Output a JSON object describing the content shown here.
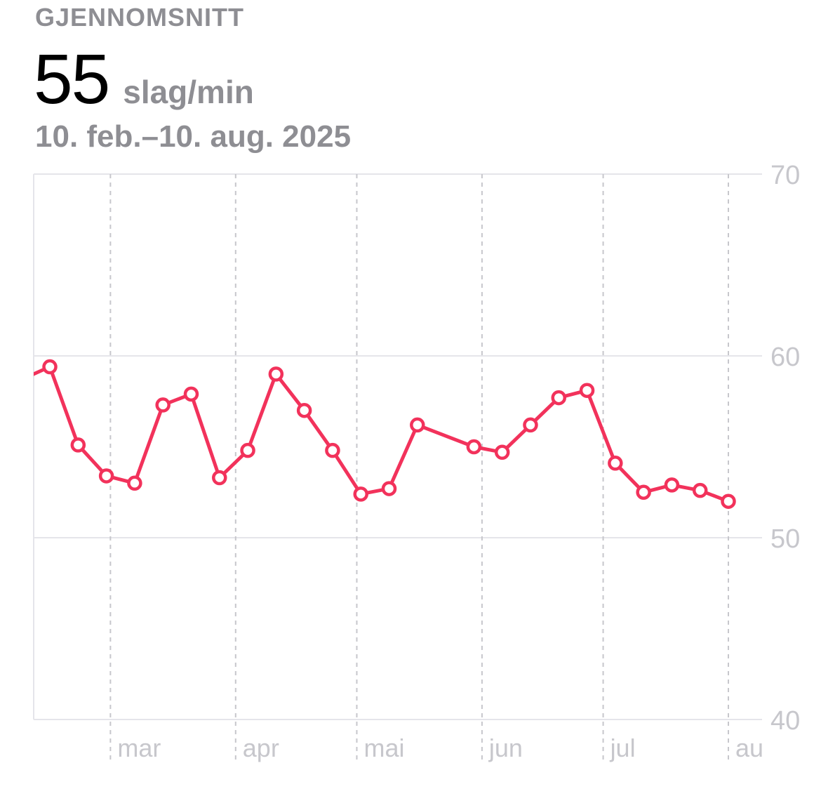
{
  "header": {
    "label": "GJENNOMSNITT",
    "value": "55",
    "unit": "slag/min",
    "date_range": "10. feb.–10. aug. 2025"
  },
  "colors": {
    "series": "#f2325b",
    "gridline": "#e5e5ea",
    "axis_text": "#c7c7cc",
    "header_gray": "#8e8e93"
  },
  "chart_data": {
    "type": "line",
    "ylim": [
      40,
      70
    ],
    "yticks": [
      "70",
      "60",
      "50",
      "40"
    ],
    "grid": true,
    "xticks": [
      {
        "label": "mar",
        "date": "2025-03-01"
      },
      {
        "label": "apr",
        "date": "2025-04-01"
      },
      {
        "label": "mai",
        "date": "2025-05-01"
      },
      {
        "label": "jun",
        "date": "2025-06-01"
      },
      {
        "label": "jul",
        "date": "2025-07-01"
      },
      {
        "label": "aug",
        "date": "2025-08-01"
      }
    ],
    "xrange": [
      "2025-02-10",
      "2025-08-10"
    ],
    "series": [
      {
        "values": [
          {
            "x": "2025-02-10",
            "y": 59.0
          },
          {
            "x": "2025-02-14",
            "y": 59.4
          },
          {
            "x": "2025-02-21",
            "y": 55.1
          },
          {
            "x": "2025-02-28",
            "y": 53.4
          },
          {
            "x": "2025-03-07",
            "y": 53.0
          },
          {
            "x": "2025-03-14",
            "y": 57.3
          },
          {
            "x": "2025-03-21",
            "y": 57.9
          },
          {
            "x": "2025-03-28",
            "y": 53.3
          },
          {
            "x": "2025-04-04",
            "y": 54.8
          },
          {
            "x": "2025-04-11",
            "y": 59.0
          },
          {
            "x": "2025-04-18",
            "y": 57.0
          },
          {
            "x": "2025-04-25",
            "y": 54.8
          },
          {
            "x": "2025-05-02",
            "y": 52.4
          },
          {
            "x": "2025-05-09",
            "y": 52.7
          },
          {
            "x": "2025-05-16",
            "y": 56.2
          },
          {
            "x": "2025-05-30",
            "y": 55.0
          },
          {
            "x": "2025-06-06",
            "y": 54.7
          },
          {
            "x": "2025-06-13",
            "y": 56.2
          },
          {
            "x": "2025-06-20",
            "y": 57.7
          },
          {
            "x": "2025-06-27",
            "y": 58.1
          },
          {
            "x": "2025-07-04",
            "y": 54.1
          },
          {
            "x": "2025-07-11",
            "y": 52.5
          },
          {
            "x": "2025-07-18",
            "y": 52.9
          },
          {
            "x": "2025-07-25",
            "y": 52.6
          },
          {
            "x": "2025-08-01",
            "y": 52.0
          }
        ]
      }
    ]
  }
}
